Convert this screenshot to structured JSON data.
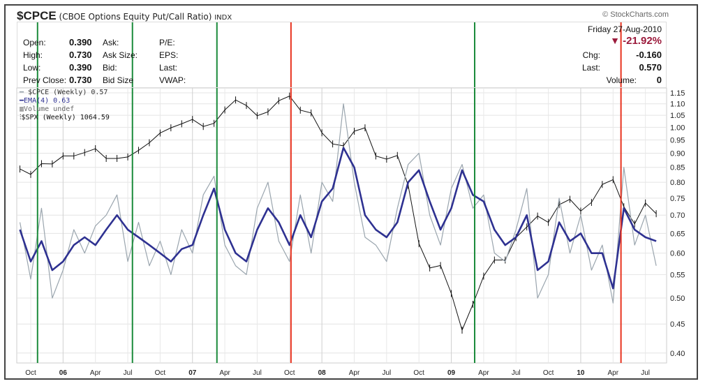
{
  "header": {
    "symbol": "$CPCE",
    "name": "(CBOE Options Equity Put/Call Ratio)",
    "exchange": "INDX",
    "brand": "© StockCharts.com"
  },
  "info": {
    "labels": {
      "open": "Open:",
      "high": "High:",
      "low": "Low:",
      "prev_close": "Prev Close:",
      "ask": "Ask:",
      "ask_size": "Ask Size:",
      "bid": "Bid:",
      "bid_size": "Bid Size",
      "pe": "P/E:",
      "eps": "EPS:",
      "last": "Last:",
      "vwap": "VWAP:",
      "chg": "Chg:",
      "last2": "Last:",
      "volume": "Volume:"
    },
    "open": "0.390",
    "high": "0.730",
    "low": "0.390",
    "prev_close": "0.730",
    "date": "Friday  27-Aug-2010",
    "pct_change": "-21.92%",
    "chg": "-0.160",
    "last": "0.570",
    "volume": "0",
    "down_color": "#9b1b3c"
  },
  "legend": {
    "cpce": "$CPCE (Weekly) 0.57",
    "ema": "EMA(4) 0.63",
    "volume": "Volume undef",
    "spx": "$SPX (Weekly) 1064.59"
  },
  "chart_data": {
    "type": "line",
    "y_scale": "log",
    "ylim": [
      0.385,
      1.17
    ],
    "y_ticks": [
      "1.15",
      "1.10",
      "1.05",
      "1.00",
      "0.95",
      "0.90",
      "0.85",
      "0.80",
      "0.75",
      "0.70",
      "0.65",
      "0.60",
      "0.55",
      "0.50",
      "0.45",
      "0.40"
    ],
    "x_ticks": [
      {
        "label": "Oct",
        "date": "2005-10"
      },
      {
        "label": "06",
        "date": "2006-01",
        "bold": true
      },
      {
        "label": "Apr",
        "date": "2006-04"
      },
      {
        "label": "Jul",
        "date": "2006-07"
      },
      {
        "label": "Oct",
        "date": "2006-10"
      },
      {
        "label": "07",
        "date": "2007-01",
        "bold": true
      },
      {
        "label": "Apr",
        "date": "2007-04"
      },
      {
        "label": "Jul",
        "date": "2007-07"
      },
      {
        "label": "Oct",
        "date": "2007-10"
      },
      {
        "label": "08",
        "date": "2008-01",
        "bold": true
      },
      {
        "label": "Apr",
        "date": "2008-04"
      },
      {
        "label": "Jul",
        "date": "2008-07"
      },
      {
        "label": "Oct",
        "date": "2008-10"
      },
      {
        "label": "09",
        "date": "2009-01",
        "bold": true
      },
      {
        "label": "Apr",
        "date": "2009-04"
      },
      {
        "label": "Jul",
        "date": "2009-07"
      },
      {
        "label": "Oct",
        "date": "2009-10"
      },
      {
        "label": "10",
        "date": "2010-01",
        "bold": true
      },
      {
        "label": "Apr",
        "date": "2010-04"
      },
      {
        "label": "Jul",
        "date": "2010-07"
      }
    ],
    "x": [
      "2005-09",
      "2005-10",
      "2005-11",
      "2005-12",
      "2006-01",
      "2006-02",
      "2006-03",
      "2006-04",
      "2006-05",
      "2006-06",
      "2006-07",
      "2006-08",
      "2006-09",
      "2006-10",
      "2006-11",
      "2006-12",
      "2007-01",
      "2007-02",
      "2007-03",
      "2007-04",
      "2007-05",
      "2007-06",
      "2007-07",
      "2007-08",
      "2007-09",
      "2007-10",
      "2007-11",
      "2007-12",
      "2008-01",
      "2008-02",
      "2008-03",
      "2008-04",
      "2008-05",
      "2008-06",
      "2008-07",
      "2008-08",
      "2008-09",
      "2008-10",
      "2008-11",
      "2008-12",
      "2009-01",
      "2009-02",
      "2009-03",
      "2009-04",
      "2009-05",
      "2009-06",
      "2009-07",
      "2009-08",
      "2009-09",
      "2009-10",
      "2009-11",
      "2009-12",
      "2010-01",
      "2010-02",
      "2010-03",
      "2010-04",
      "2010-05",
      "2010-06",
      "2010-07",
      "2010-08"
    ],
    "series": [
      {
        "name": "$CPCE (Weekly)",
        "color": "#9aa5ae",
        "values": [
          0.68,
          0.54,
          0.72,
          0.5,
          0.56,
          0.66,
          0.6,
          0.67,
          0.7,
          0.76,
          0.58,
          0.68,
          0.57,
          0.63,
          0.55,
          0.66,
          0.6,
          0.76,
          0.82,
          0.62,
          0.57,
          0.55,
          0.72,
          0.8,
          0.63,
          0.58,
          0.76,
          0.6,
          0.8,
          0.74,
          1.1,
          0.8,
          0.64,
          0.62,
          0.58,
          0.72,
          0.86,
          0.9,
          0.7,
          0.62,
          0.78,
          0.86,
          0.72,
          0.76,
          0.6,
          0.58,
          0.66,
          0.78,
          0.5,
          0.55,
          0.75,
          0.6,
          0.7,
          0.56,
          0.62,
          0.49,
          0.85,
          0.62,
          0.7,
          0.57
        ]
      },
      {
        "name": "EMA(4)",
        "color": "#2e3191",
        "values": [
          0.66,
          0.58,
          0.63,
          0.56,
          0.58,
          0.62,
          0.64,
          0.62,
          0.66,
          0.7,
          0.66,
          0.64,
          0.62,
          0.6,
          0.58,
          0.61,
          0.62,
          0.7,
          0.78,
          0.66,
          0.6,
          0.58,
          0.66,
          0.72,
          0.68,
          0.62,
          0.7,
          0.64,
          0.74,
          0.78,
          0.92,
          0.85,
          0.7,
          0.66,
          0.64,
          0.68,
          0.8,
          0.84,
          0.74,
          0.66,
          0.72,
          0.84,
          0.76,
          0.74,
          0.66,
          0.62,
          0.64,
          0.7,
          0.56,
          0.58,
          0.68,
          0.63,
          0.65,
          0.6,
          0.6,
          0.52,
          0.72,
          0.66,
          0.64,
          0.63
        ]
      },
      {
        "name": "$SPX (Weekly)",
        "color": "#111111",
        "scale_range": [
          683,
          1565
        ],
        "values": [
          1228,
          1207,
          1249,
          1248,
          1280,
          1280,
          1294,
          1310,
          1270,
          1270,
          1276,
          1303,
          1335,
          1377,
          1400,
          1418,
          1438,
          1406,
          1420,
          1482,
          1530,
          1503,
          1455,
          1473,
          1526,
          1549,
          1481,
          1468,
          1378,
          1330,
          1322,
          1385,
          1400,
          1280,
          1267,
          1282,
          1166,
          968,
          896,
          903,
          826,
          735,
          798,
          873,
          919,
          919,
          987,
          1021,
          1057,
          1036,
          1096,
          1115,
          1074,
          1104,
          1169,
          1187,
          1089,
          1031,
          1102,
          1065
        ]
      }
    ],
    "markers": [
      {
        "date": "2005-10-20",
        "color": "#1a8a3a"
      },
      {
        "date": "2006-07-14",
        "color": "#1a8a3a"
      },
      {
        "date": "2007-03-09",
        "color": "#1a8a3a"
      },
      {
        "date": "2007-10-05",
        "color": "#e8321e"
      },
      {
        "date": "2009-03-06",
        "color": "#1a8a3a"
      },
      {
        "date": "2010-04-23",
        "color": "#e8321e"
      }
    ],
    "grid": true
  }
}
